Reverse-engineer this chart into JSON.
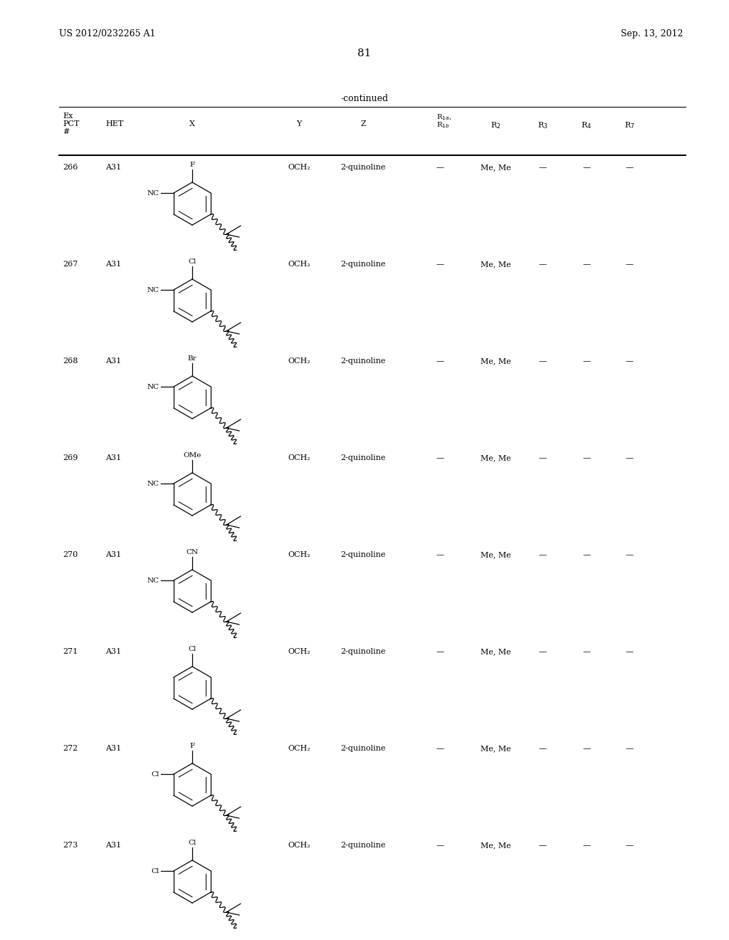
{
  "page_left": "US 2012/0232265 A1",
  "page_right": "Sep. 13, 2012",
  "page_number": "81",
  "table_title": "-continued",
  "background_color": "#ffffff",
  "text_color": "#000000",
  "rows": [
    {
      "num": "266",
      "het": "A31",
      "x_top": "F",
      "x_left": "NC",
      "y": "OCH₂",
      "z": "2-quinoline",
      "r1": "—",
      "r2": "Me, Me",
      "r3": "—",
      "r4": "—",
      "r7": "—"
    },
    {
      "num": "267",
      "het": "A31",
      "x_top": "Cl",
      "x_left": "NC",
      "y": "OCH₂",
      "z": "2-quinoline",
      "r1": "—",
      "r2": "Me, Me",
      "r3": "—",
      "r4": "—",
      "r7": "—"
    },
    {
      "num": "268",
      "het": "A31",
      "x_top": "Br",
      "x_left": "NC",
      "y": "OCH₂",
      "z": "2-quinoline",
      "r1": "—",
      "r2": "Me, Me",
      "r3": "—",
      "r4": "—",
      "r7": "—"
    },
    {
      "num": "269",
      "het": "A31",
      "x_top": "OMe",
      "x_left": "NC",
      "y": "OCH₂",
      "z": "2-quinoline",
      "r1": "—",
      "r2": "Me, Me",
      "r3": "—",
      "r4": "—",
      "r7": "—"
    },
    {
      "num": "270",
      "het": "A31",
      "x_top": "CN",
      "x_left": "NC",
      "y": "OCH₂",
      "z": "2-quinoline",
      "r1": "—",
      "r2": "Me, Me",
      "r3": "—",
      "r4": "—",
      "r7": "—"
    },
    {
      "num": "271",
      "het": "A31",
      "x_top": "Cl",
      "x_left": "",
      "y": "OCH₂",
      "z": "2-quinoline",
      "r1": "—",
      "r2": "Me, Me",
      "r3": "—",
      "r4": "—",
      "r7": "—"
    },
    {
      "num": "272",
      "het": "A31",
      "x_top": "F",
      "x_left": "Cl",
      "y": "OCH₂",
      "z": "2-quinoline",
      "r1": "—",
      "r2": "Me, Me",
      "r3": "—",
      "r4": "—",
      "r7": "—"
    },
    {
      "num": "273",
      "het": "A31",
      "x_top": "Cl",
      "x_left": "Cl",
      "y": "OCH₂",
      "z": "2-quinoline",
      "r1": "—",
      "r2": "Me, Me",
      "r3": "—",
      "r4": "—",
      "r7": "—"
    }
  ]
}
